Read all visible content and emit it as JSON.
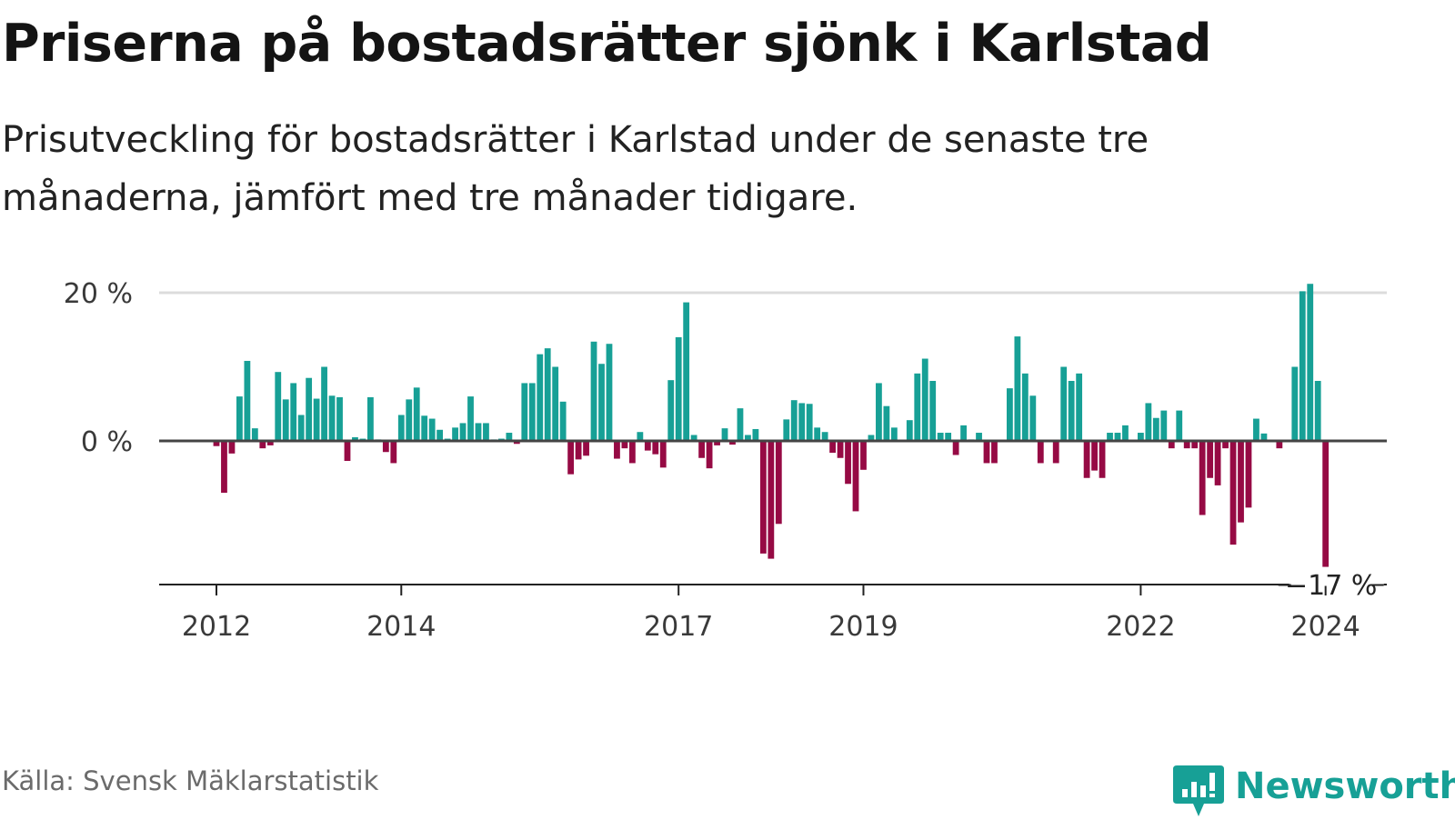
{
  "title": "Priserna på bostadsrätter sjönk i Karlstad",
  "subtitle": "Prisutveckling för bostadsrätter i Karlstad under de senaste tre månaderna, jämfört med tre månader tidigare.",
  "source": "Källa: Svensk Mäklarstatistik",
  "brand": {
    "name": "Newsworthy",
    "icon": "newsworthy-logo-icon"
  },
  "colors": {
    "positive": "#17a096",
    "negative": "#960a44",
    "grid": "#dcdcdc",
    "axis": "#444444"
  },
  "chart_data": {
    "type": "bar",
    "title": "Priserna på bostadsrätter sjönk i Karlstad",
    "xlabel": "",
    "ylabel": "",
    "unit": "%",
    "ylim": [
      -19,
      20
    ],
    "yticks": [
      {
        "value": 0,
        "label": "0 %"
      },
      {
        "value": 20,
        "label": "20 %"
      }
    ],
    "xticks": [
      {
        "year": 2012,
        "label": "2012"
      },
      {
        "year": 2014,
        "label": "2014"
      },
      {
        "year": 2017,
        "label": "2017"
      },
      {
        "year": 2019,
        "label": "2019"
      },
      {
        "year": 2022,
        "label": "2022"
      },
      {
        "year": 2024,
        "label": "2024"
      }
    ],
    "start": {
      "year": 2012,
      "month": 1
    },
    "values": [
      -0.7,
      -7.0,
      -1.7,
      6.0,
      10.8,
      1.7,
      -1.0,
      -0.6,
      9.3,
      5.6,
      7.8,
      3.5,
      8.5,
      5.7,
      10.0,
      6.1,
      5.9,
      -2.7,
      0.5,
      0.3,
      5.9,
      0.2,
      -1.5,
      -3.0,
      3.5,
      5.6,
      7.2,
      3.4,
      3.0,
      1.5,
      0.3,
      1.8,
      2.4,
      6.0,
      2.4,
      2.4,
      0.2,
      0.3,
      1.1,
      -0.4,
      7.8,
      7.8,
      11.7,
      12.5,
      10.0,
      5.3,
      -4.5,
      -2.5,
      -2.0,
      13.4,
      10.4,
      13.1,
      -2.4,
      -1.0,
      -3.0,
      1.2,
      -1.3,
      -1.8,
      -3.6,
      8.2,
      14.0,
      18.7,
      0.8,
      -2.3,
      -3.7,
      -0.6,
      1.7,
      -0.5,
      4.4,
      0.8,
      1.6,
      -15.2,
      -15.9,
      -11.2,
      2.9,
      5.5,
      5.1,
      5.0,
      1.8,
      1.2,
      -1.6,
      -2.3,
      -5.8,
      -9.5,
      -3.9,
      0.8,
      7.8,
      4.7,
      1.8,
      0.1,
      2.8,
      9.1,
      11.1,
      8.1,
      1.1,
      1.1,
      -1.9,
      2.1,
      0.2,
      1.1,
      -3.0,
      -3.0,
      0.1,
      7.1,
      14.1,
      9.1,
      6.1,
      -3.0,
      0.1,
      -3.0,
      10.0,
      8.1,
      9.1,
      -5.0,
      -4.0,
      -5.0,
      1.1,
      1.1,
      2.1,
      0.1,
      1.1,
      5.1,
      3.1,
      4.1,
      -1.0,
      4.1,
      -1.0,
      -1.0,
      -10.0,
      -5.0,
      -6.0,
      -1.0,
      -14.0,
      -11.0,
      -9.0,
      3.0,
      1.0,
      0.1,
      -1.0,
      0.1,
      10.0,
      20.2,
      21.2,
      8.1,
      -17.0
    ],
    "annotation": {
      "value": -17,
      "label": "−17 %"
    }
  }
}
